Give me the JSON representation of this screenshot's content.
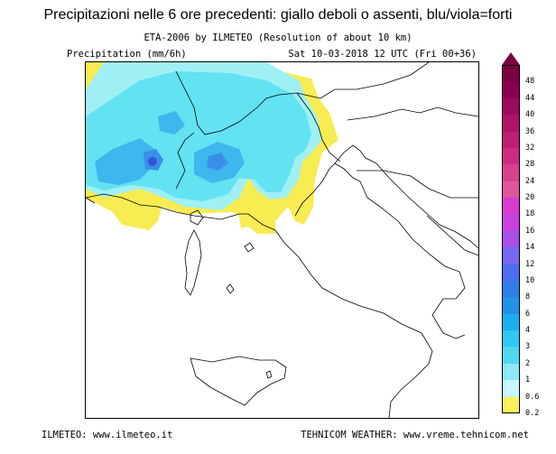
{
  "header": {
    "title": "Precipitazioni nelle 6 ore precedenti: giallo deboli o assenti, blu/viola=forti",
    "model_line": "ETA-2006 by ILMETEO (Resolution of about 10 km)",
    "units_label": "Precipitation (mm/6h)",
    "valid_time": "Sat 10-03-2018 12 UTC (Fri 00+36)"
  },
  "footer": {
    "left": "ILMETEO: www.ilmeteo.it",
    "right": "TEHNICOM WEATHER: www.vreme.tehnicom.net"
  },
  "legend": {
    "levels": [
      {
        "label": "48",
        "color": "#7a0040"
      },
      {
        "label": "44",
        "color": "#8a0050"
      },
      {
        "label": "40",
        "color": "#9c0a5e"
      },
      {
        "label": "36",
        "color": "#ad1468"
      },
      {
        "label": "32",
        "color": "#bd1f74"
      },
      {
        "label": "28",
        "color": "#cc2d82"
      },
      {
        "label": "24",
        "color": "#d84090"
      },
      {
        "label": "20",
        "color": "#e055a0"
      },
      {
        "label": "18",
        "color": "#d83ad0"
      },
      {
        "label": "16",
        "color": "#c840e0"
      },
      {
        "label": "14",
        "color": "#a850e8"
      },
      {
        "label": "12",
        "color": "#7868f0"
      },
      {
        "label": "10",
        "color": "#4d6cf0"
      },
      {
        "label": "8",
        "color": "#2f7de6"
      },
      {
        "label": "6",
        "color": "#1f93e8"
      },
      {
        "label": "4",
        "color": "#1ab0ee"
      },
      {
        "label": "3",
        "color": "#2fc8f2"
      },
      {
        "label": "2",
        "color": "#4fd8f0"
      },
      {
        "label": "1",
        "color": "#8ce8f3"
      },
      {
        "label": "0.6",
        "color": "#c6f5fb"
      },
      {
        "label": "0.2",
        "color": "#f6f05a"
      }
    ]
  },
  "colors": {
    "yellow": "#f7ec52",
    "light_cyan": "#9ff0f5",
    "cyan": "#63e2f2",
    "medium_blue": "#3fb6ee",
    "blue": "#3a8fe8",
    "dark_blue": "#3056d6",
    "border_line": "#000000"
  }
}
